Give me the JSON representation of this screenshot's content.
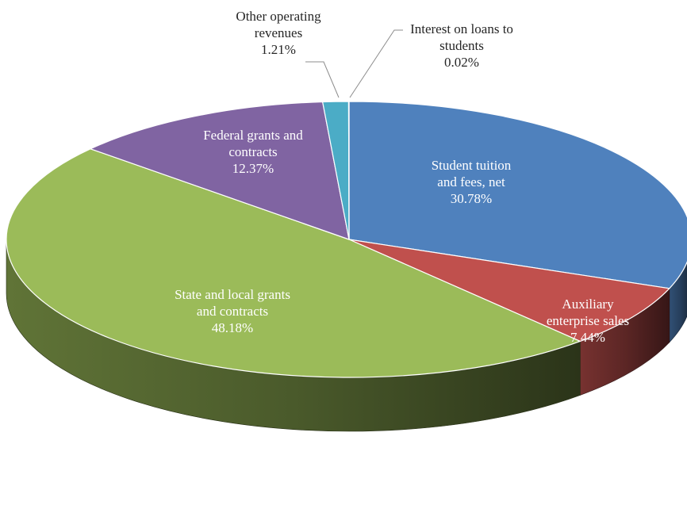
{
  "chart_data": {
    "type": "pie",
    "style": "3d",
    "title": "",
    "slices": [
      {
        "name": "Student tuition and fees, net",
        "label_lines": [
          "Student tuition",
          "and fees, net"
        ],
        "value": 30.78,
        "value_label": "30.78%",
        "color": "#4f81bd",
        "label_position": "inside"
      },
      {
        "name": "Auxiliary enterprise sales",
        "label_lines": [
          "Auxiliary",
          "enterprise sales"
        ],
        "value": 7.44,
        "value_label": "7.44%",
        "color": "#c0504d",
        "label_position": "inside"
      },
      {
        "name": "State and local grants and contracts",
        "label_lines": [
          "State and local grants",
          "and contracts"
        ],
        "value": 48.18,
        "value_label": "48.18%",
        "color": "#9bbb59",
        "label_position": "inside"
      },
      {
        "name": "Federal grants and contracts",
        "label_lines": [
          "Federal grants and",
          "contracts"
        ],
        "value": 12.37,
        "value_label": "12.37%",
        "color": "#8064a2",
        "label_position": "inside"
      },
      {
        "name": "Other operating revenues",
        "label_lines": [
          "Other operating",
          "revenues"
        ],
        "value": 1.21,
        "value_label": "1.21%",
        "color": "#4bacc6",
        "label_position": "outside"
      },
      {
        "name": "Interest on loans to students",
        "label_lines": [
          "Interest on loans to",
          "students"
        ],
        "value": 0.02,
        "value_label": "0.02%",
        "color": "#f79646",
        "label_position": "outside"
      }
    ]
  }
}
